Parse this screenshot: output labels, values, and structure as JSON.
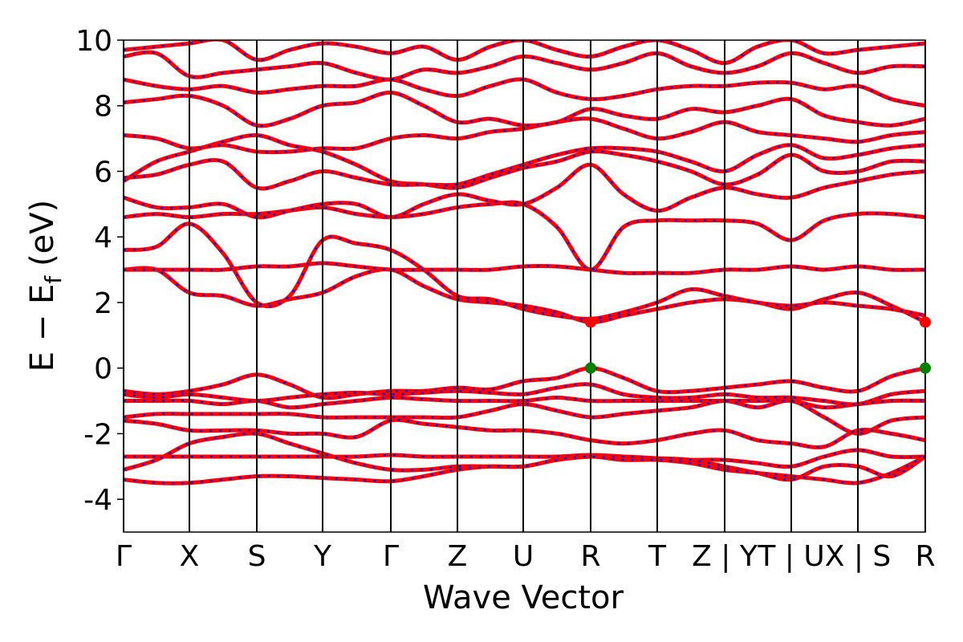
{
  "chart_data": {
    "type": "band_structure",
    "ylabel": {
      "main": "E − E",
      "sub": "f",
      "unit": "(eV)"
    },
    "xlabel": "Wave Vector",
    "line_color": "#ff0000",
    "dash_color": "#0000ff",
    "xlim": [
      0,
      9.99
    ],
    "ylim": [
      -5,
      10
    ],
    "yticks": [
      -4,
      -2,
      0,
      2,
      4,
      6,
      8,
      10
    ],
    "xticks": [
      {
        "value": 0,
        "label": "Γ"
      },
      {
        "value": 0.82,
        "label": "X"
      },
      {
        "value": 1.66,
        "label": "S"
      },
      {
        "value": 2.48,
        "label": "Y"
      },
      {
        "value": 3.33,
        "label": "Γ"
      },
      {
        "value": 4.16,
        "label": "Z"
      },
      {
        "value": 4.98,
        "label": "U"
      },
      {
        "value": 5.82,
        "label": "R"
      },
      {
        "value": 6.65,
        "label": "T"
      },
      {
        "value": 7.49,
        "label": "Z | Y"
      },
      {
        "value": 8.32,
        "label": "T | U"
      },
      {
        "value": 9.15,
        "label": "X | S"
      },
      {
        "value": 9.99,
        "label": "R"
      }
    ],
    "x": [
      0,
      0.41,
      0.82,
      1.24,
      1.66,
      2.07,
      2.48,
      2.9,
      3.33,
      3.74,
      4.16,
      4.57,
      4.98,
      5.4,
      5.82,
      6.23,
      6.65,
      7.07,
      7.49,
      7.9,
      8.32,
      8.73,
      9.15,
      9.57,
      9.99
    ],
    "series": [
      {
        "values": [
          -0.7,
          -0.8,
          -0.7,
          -0.5,
          -0.2,
          -0.5,
          -0.9,
          -0.8,
          -0.7,
          -0.7,
          -0.6,
          -0.65,
          -0.4,
          -0.3,
          0,
          -0.3,
          -0.7,
          -0.7,
          -0.6,
          -0.5,
          -0.4,
          -0.6,
          -0.7,
          -0.25,
          0
        ]
      },
      {
        "values": [
          -0.8,
          -0.9,
          -0.8,
          -0.9,
          -1.0,
          -0.9,
          -0.8,
          -0.75,
          -0.8,
          -0.75,
          -0.7,
          -0.75,
          -0.8,
          -0.6,
          -0.5,
          -0.8,
          -0.9,
          -0.9,
          -0.8,
          -0.9,
          -0.9,
          -1.0,
          -1.1,
          -0.8,
          -0.7
        ]
      },
      {
        "values": [
          -1.0,
          -1.0,
          -1.0,
          -1.1,
          -1.0,
          -1.2,
          -1.1,
          -1.0,
          -0.9,
          -0.95,
          -1.0,
          -1.0,
          -1.0,
          -0.9,
          -1.0,
          -1.0,
          -1.0,
          -1.0,
          -1.0,
          -1.0,
          -1.0,
          -1.2,
          -1.1,
          -1.0,
          -1.0
        ]
      },
      {
        "values": [
          -1.5,
          -1.4,
          -1.4,
          -1.4,
          -1.4,
          -1.4,
          -1.5,
          -1.5,
          -1.5,
          -1.5,
          -1.5,
          -1.3,
          -1.1,
          -1.3,
          -1.5,
          -1.4,
          -1.3,
          -1.2,
          -1.0,
          -1.2,
          -1.0,
          -1.5,
          -2.0,
          -1.6,
          -1.5
        ]
      },
      {
        "values": [
          -1.6,
          -1.7,
          -1.9,
          -1.9,
          -1.9,
          -2.0,
          -2.0,
          -2.1,
          -1.6,
          -1.7,
          -1.8,
          -1.9,
          -1.9,
          -2.0,
          -2.2,
          -2.3,
          -2.2,
          -2.0,
          -1.9,
          -2.2,
          -2.3,
          -2.4,
          -1.9,
          -2.0,
          -2.2
        ]
      },
      {
        "values": [
          -2.7,
          -2.7,
          -2.7,
          -2.7,
          -2.7,
          -2.7,
          -2.7,
          -2.7,
          -2.65,
          -2.7,
          -2.7,
          -2.7,
          -2.7,
          -2.7,
          -2.65,
          -2.7,
          -2.8,
          -2.8,
          -2.8,
          -2.9,
          -3.0,
          -2.7,
          -2.5,
          -2.7,
          -2.7
        ]
      },
      {
        "values": [
          -3.1,
          -2.8,
          -2.3,
          -2.1,
          -2.0,
          -2.3,
          -2.6,
          -2.9,
          -3.1,
          -3.1,
          -3.0,
          -3.0,
          -3.0,
          -2.8,
          -2.7,
          -2.7,
          -2.75,
          -2.8,
          -3.0,
          -3.2,
          -3.4,
          -3.0,
          -3.0,
          -3.3,
          -2.7
        ]
      },
      {
        "values": [
          -3.4,
          -3.5,
          -3.5,
          -3.4,
          -3.3,
          -3.3,
          -3.35,
          -3.4,
          -3.45,
          -3.3,
          -3.1,
          -3.0,
          -3.0,
          -2.8,
          -2.7,
          -2.8,
          -2.8,
          -2.9,
          -3.1,
          -3.2,
          -3.3,
          -3.4,
          -3.5,
          -3.2,
          -2.7
        ]
      },
      {
        "values": [
          3.0,
          3.0,
          2.3,
          2.2,
          1.9,
          2.1,
          2.3,
          2.8,
          3.0,
          2.5,
          2.1,
          2.0,
          1.9,
          1.7,
          1.4,
          1.6,
          1.8,
          2.0,
          2.1,
          2.0,
          1.8,
          2.1,
          2.3,
          1.9,
          1.4
        ]
      },
      {
        "values": [
          3.6,
          3.7,
          4.4,
          3.5,
          2.0,
          2.2,
          3.9,
          3.8,
          3.6,
          3.0,
          2.2,
          2.1,
          1.8,
          1.6,
          1.5,
          1.7,
          2.0,
          2.4,
          2.2,
          2.0,
          1.9,
          2.0,
          1.9,
          1.8,
          1.6
        ]
      },
      {
        "values": [
          3.0,
          3.0,
          3.0,
          3.0,
          3.1,
          3.1,
          3.2,
          3.1,
          3.0,
          3.0,
          3.0,
          3.0,
          3.1,
          3.1,
          3.0,
          2.9,
          2.9,
          2.9,
          3.0,
          3.0,
          3.1,
          3.0,
          3.1,
          3.0,
          3.0
        ]
      },
      {
        "values": [
          4.6,
          4.7,
          4.6,
          4.7,
          4.7,
          4.8,
          4.9,
          4.7,
          4.6,
          4.7,
          4.9,
          5.0,
          5.0,
          4.3,
          3.0,
          4.3,
          4.5,
          4.5,
          4.5,
          4.4,
          3.9,
          4.5,
          4.7,
          4.7,
          4.6
        ]
      },
      {
        "values": [
          5.2,
          4.9,
          4.9,
          5.0,
          4.6,
          4.8,
          5.0,
          5.0,
          4.6,
          5.0,
          5.3,
          5.1,
          5.0,
          5.5,
          6.2,
          5.3,
          4.8,
          5.2,
          5.5,
          5.3,
          5.2,
          5.5,
          5.7,
          5.9,
          6.0
        ]
      },
      {
        "values": [
          5.7,
          6.3,
          6.6,
          6.9,
          7.1,
          6.8,
          6.6,
          6.2,
          5.7,
          5.6,
          5.5,
          5.8,
          6.1,
          6.3,
          6.6,
          6.5,
          6.3,
          6.0,
          5.6,
          5.9,
          6.5,
          6.0,
          6.0,
          6.3,
          6.3
        ]
      },
      {
        "values": [
          5.8,
          5.9,
          6.2,
          6.3,
          5.5,
          5.7,
          6.0,
          5.8,
          5.6,
          5.6,
          5.6,
          5.9,
          6.2,
          6.5,
          6.7,
          6.7,
          6.6,
          6.3,
          6.0,
          6.5,
          6.8,
          6.4,
          6.5,
          6.7,
          6.8
        ]
      },
      {
        "values": [
          7.1,
          7.0,
          6.7,
          6.8,
          6.6,
          6.6,
          6.7,
          6.7,
          7.0,
          7.1,
          7.0,
          7.2,
          7.3,
          7.5,
          7.6,
          7.3,
          7.0,
          7.2,
          7.5,
          7.2,
          7.1,
          7.0,
          6.9,
          7.1,
          7.2
        ]
      },
      {
        "values": [
          8.1,
          8.2,
          8.3,
          8.0,
          7.4,
          7.6,
          8.0,
          8.1,
          8.4,
          8.0,
          7.5,
          7.6,
          7.4,
          7.5,
          7.9,
          7.7,
          7.6,
          7.9,
          7.8,
          8.0,
          8.2,
          7.7,
          7.5,
          7.4,
          7.6
        ]
      },
      {
        "values": [
          8.8,
          8.6,
          8.5,
          8.6,
          8.4,
          8.5,
          8.6,
          8.6,
          8.8,
          8.5,
          8.3,
          8.6,
          8.8,
          8.4,
          8.2,
          8.3,
          8.5,
          8.6,
          8.6,
          8.7,
          8.7,
          8.5,
          8.6,
          8.2,
          8.0
        ]
      },
      {
        "values": [
          9.5,
          9.6,
          8.9,
          9.0,
          9.1,
          9.2,
          9.3,
          9.0,
          8.8,
          9.1,
          9.0,
          9.2,
          9.5,
          9.3,
          9.1,
          9.3,
          9.6,
          9.2,
          9.0,
          9.2,
          9.6,
          9.3,
          9.0,
          9.2,
          9.2
        ]
      },
      {
        "values": [
          9.7,
          9.8,
          9.9,
          10.0,
          9.4,
          9.7,
          9.9,
          9.8,
          9.6,
          9.8,
          9.4,
          9.8,
          10.0,
          9.7,
          9.5,
          9.8,
          10.0,
          9.7,
          9.3,
          9.8,
          10.0,
          9.6,
          9.7,
          9.8,
          9.9
        ]
      }
    ],
    "points": [
      {
        "x": 5.82,
        "y": 0,
        "color": "#008000"
      },
      {
        "x": 9.99,
        "y": 0,
        "color": "#008000"
      },
      {
        "x": 5.82,
        "y": 1.4,
        "color": "#ff0000"
      },
      {
        "x": 9.99,
        "y": 1.4,
        "color": "#ff0000"
      }
    ]
  }
}
